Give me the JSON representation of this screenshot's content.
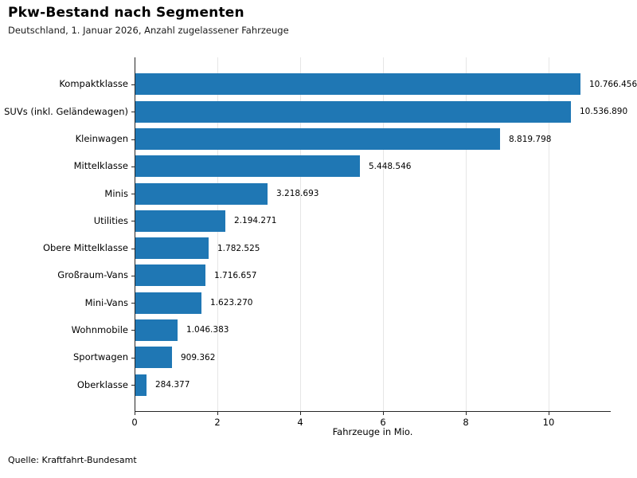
{
  "header": {
    "title": "Pkw-Bestand nach Segmenten",
    "subtitle": "Deutschland, 1. Januar 2026, Anzahl zugelassener Fahrzeuge"
  },
  "footer": {
    "source": "Quelle: Kraftfahrt-Bundesamt"
  },
  "chart_data": {
    "type": "bar",
    "orientation": "horizontal",
    "title": "Pkw-Bestand nach Segmenten",
    "subtitle": "Deutschland, 1. Januar 2026, Anzahl zugelassener Fahrzeuge",
    "xlabel": "Fahrzeuge in Mio.",
    "ylabel": "",
    "categories": [
      "Kompaktklasse",
      "SUVs (inkl. Geländewagen)",
      "Kleinwagen",
      "Mittelklasse",
      "Minis",
      "Utilities",
      "Obere Mittelklasse",
      "Großraum-Vans",
      "Mini-Vans",
      "Wohnmobile",
      "Sportwagen",
      "Oberklasse"
    ],
    "values": [
      10766456,
      10536890,
      8819798,
      5448546,
      3218693,
      2194271,
      1782525,
      1716657,
      1623270,
      1046383,
      909362,
      284377
    ],
    "value_labels": [
      "10.766.456",
      "10.536.890",
      "8.819.798",
      "5.448.546",
      "3.218.693",
      "2.194.271",
      "1.782.525",
      "1.716.657",
      "1.623.270",
      "1.046.383",
      "909.362",
      "284.377"
    ],
    "xlim": [
      0,
      11.5
    ],
    "xticks": [
      0,
      2,
      4,
      6,
      8,
      10
    ],
    "grid": "vertical",
    "legend": "none",
    "bar_color": "#1f77b4",
    "grid_color": "#e6e6e6",
    "spine_color": "#262626",
    "source": "Quelle: Kraftfahrt-Bundesamt"
  }
}
